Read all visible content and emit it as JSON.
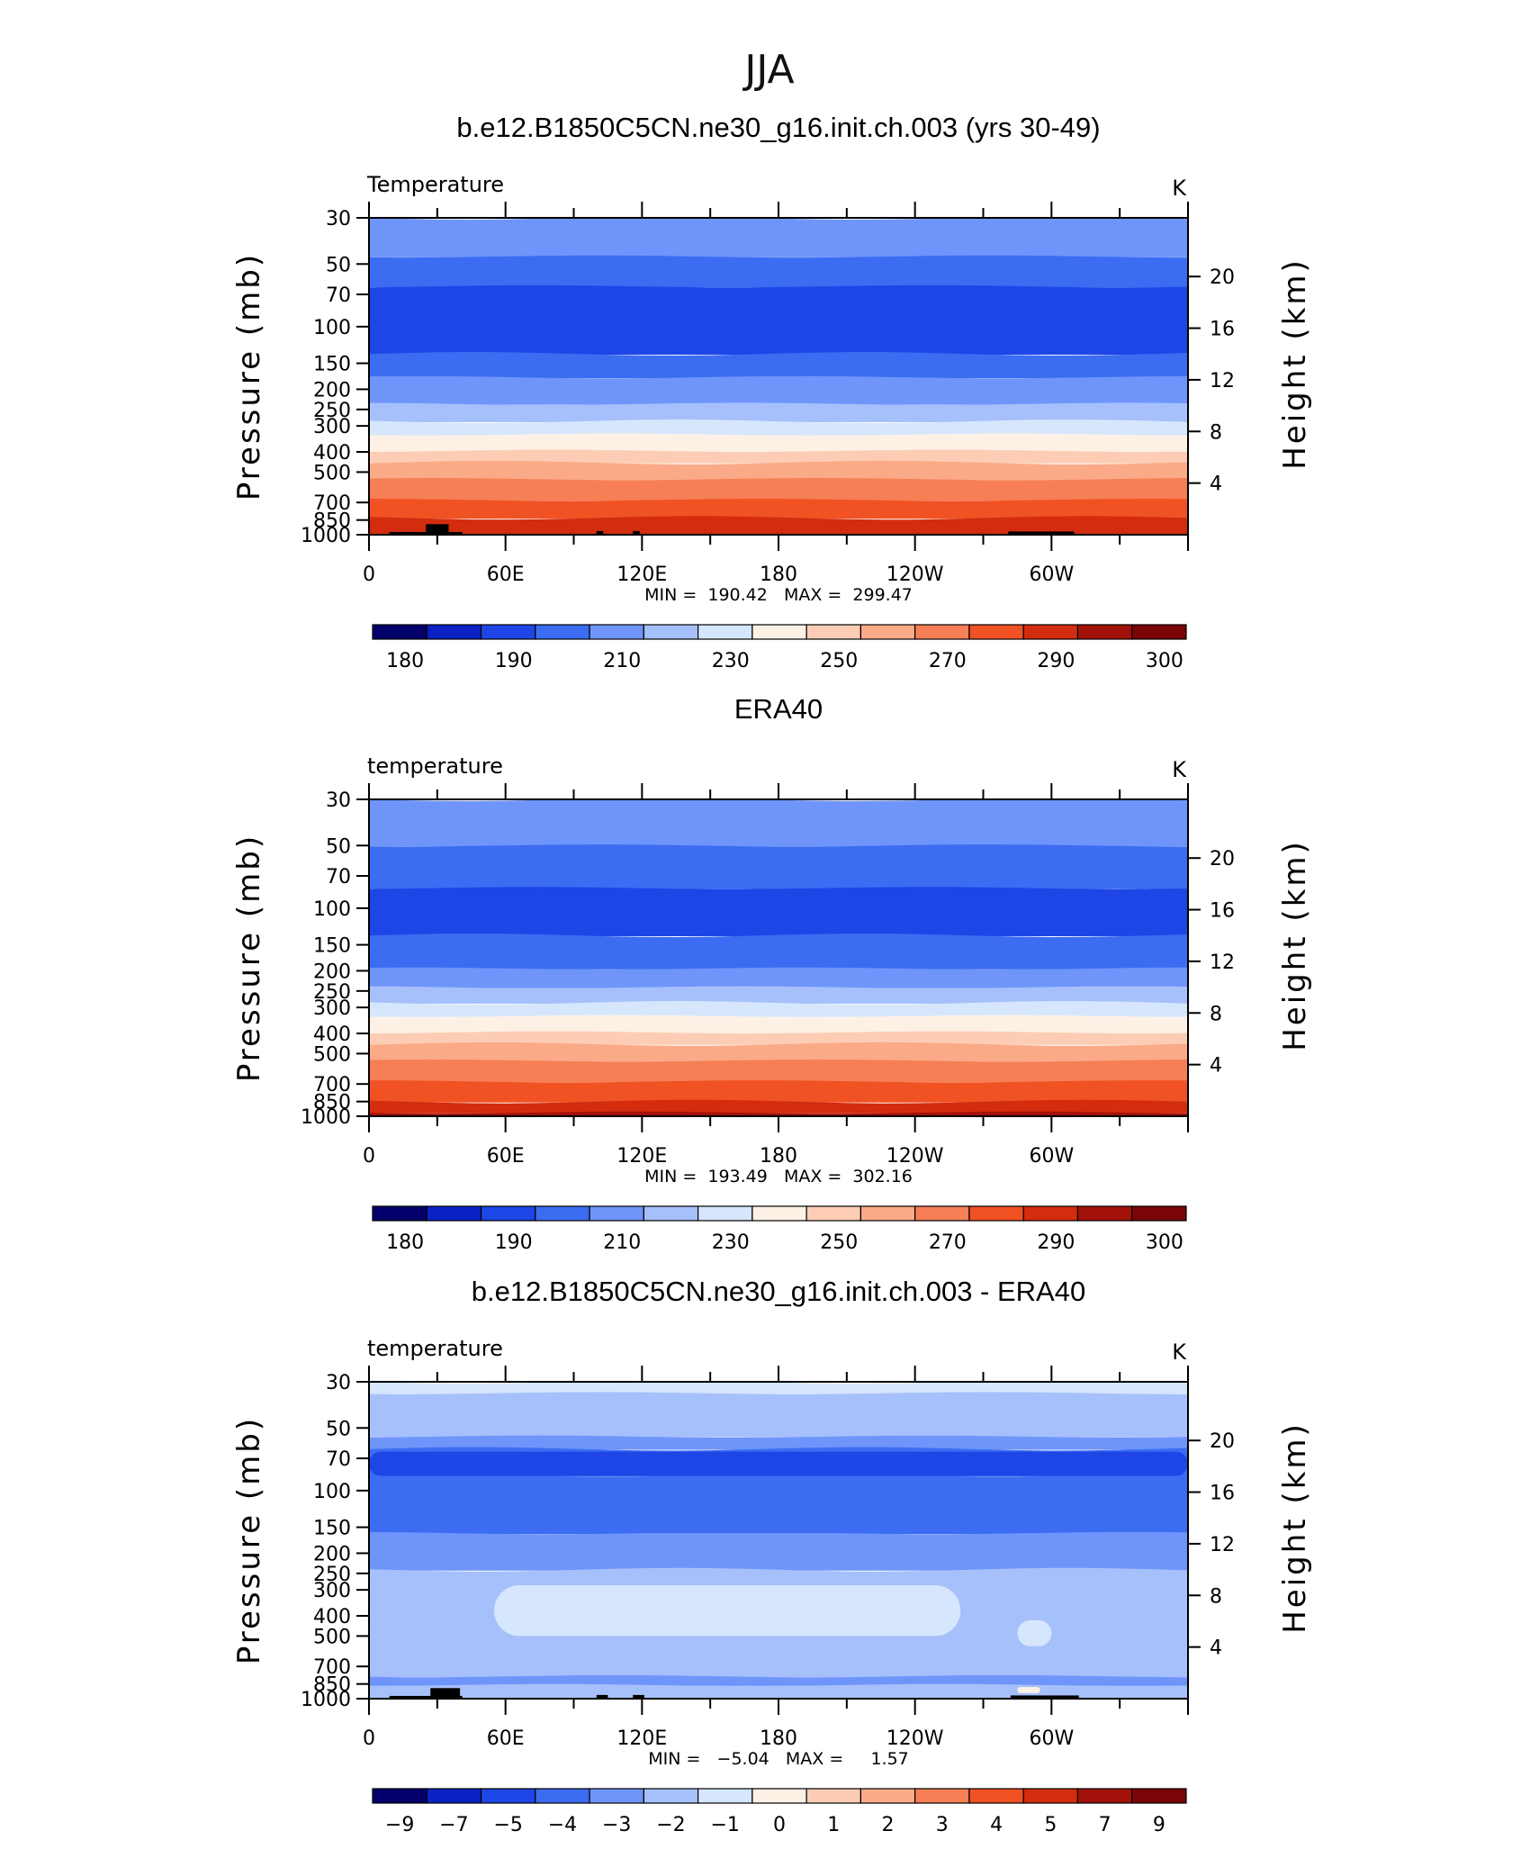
{
  "figure": {
    "title": "JJA"
  },
  "chart_data": [
    {
      "type": "heatmap",
      "panel_title": "b.e12.B1850C5CN.ne30_g16.init.ch.003 (yrs 30-49)",
      "left_string": "Temperature",
      "units": "K",
      "ylabel": "Pressure (mb)",
      "ylabel_right": "Height (km)",
      "x_ticklabels": [
        "0",
        "60E",
        "120E",
        "180",
        "120W",
        "60W"
      ],
      "y_ticklabels": [
        "30",
        "50",
        "70",
        "100",
        "150",
        "200",
        "250",
        "300",
        "400",
        "500",
        "700",
        "850",
        "1000"
      ],
      "y_right_ticklabels": [
        "20",
        "16",
        "12",
        "8",
        "4"
      ],
      "min": "190.42",
      "max": "299.47",
      "minmax_text": "MIN =  190.42   MAX =  299.47",
      "colorbar_labels": [
        "180",
        "190",
        "210",
        "230",
        "250",
        "270",
        "290",
        "300"
      ],
      "colorbar_colors": [
        "#03006b",
        "#0a22c4",
        "#1e46e6",
        "#3b6cf2",
        "#6f95fa",
        "#a6c0fb",
        "#d6e6fd",
        "#fdf1e6",
        "#fccdb4",
        "#fbaa88",
        "#f67f56",
        "#f05223",
        "#d32c0f",
        "#a3120a",
        "#7a0406"
      ],
      "bands": [
        {
          "pressure_top": 30,
          "pressure_bottom": 46,
          "color": "#6f95fa"
        },
        {
          "pressure_top": 46,
          "pressure_bottom": 64,
          "color": "#3b6cf2"
        },
        {
          "pressure_top": 64,
          "pressure_bottom": 135,
          "color": "#1e46e6"
        },
        {
          "pressure_top": 135,
          "pressure_bottom": 175,
          "color": "#3b6cf2"
        },
        {
          "pressure_top": 175,
          "pressure_bottom": 235,
          "color": "#6f95fa"
        },
        {
          "pressure_top": 235,
          "pressure_bottom": 285,
          "color": "#a6c0fb"
        },
        {
          "pressure_top": 285,
          "pressure_bottom": 330,
          "color": "#d6e6fd"
        },
        {
          "pressure_top": 330,
          "pressure_bottom": 395,
          "color": "#fdf1e6"
        },
        {
          "pressure_top": 395,
          "pressure_bottom": 450,
          "color": "#fccdb4"
        },
        {
          "pressure_top": 450,
          "pressure_bottom": 540,
          "color": "#fbaa88"
        },
        {
          "pressure_top": 540,
          "pressure_bottom": 680,
          "color": "#f67f56"
        },
        {
          "pressure_top": 680,
          "pressure_bottom": 830,
          "color": "#f05223"
        },
        {
          "pressure_top": 830,
          "pressure_bottom": 1000,
          "color": "#d32c0f"
        }
      ],
      "topography": [
        {
          "lon_from": 9,
          "lon_to": 41,
          "pressure_top": 970
        },
        {
          "lon_from": 25,
          "lon_to": 35,
          "pressure_top": 890
        },
        {
          "lon_from": 100,
          "lon_to": 103,
          "pressure_top": 960
        },
        {
          "lon_from": 116,
          "lon_to": 119,
          "pressure_top": 960
        },
        {
          "lon_from": 281,
          "lon_to": 310,
          "pressure_top": 965
        }
      ]
    },
    {
      "type": "heatmap",
      "panel_title": "ERA40",
      "left_string": "temperature",
      "units": "K",
      "ylabel": "Pressure (mb)",
      "ylabel_right": "Height (km)",
      "x_ticklabels": [
        "0",
        "60E",
        "120E",
        "180",
        "120W",
        "60W"
      ],
      "y_ticklabels": [
        "30",
        "50",
        "70",
        "100",
        "150",
        "200",
        "250",
        "300",
        "400",
        "500",
        "700",
        "850",
        "1000"
      ],
      "y_right_ticklabels": [
        "20",
        "16",
        "12",
        "8",
        "4"
      ],
      "min": "193.49",
      "max": "302.16",
      "minmax_text": "MIN =  193.49   MAX =  302.16",
      "colorbar_labels": [
        "180",
        "190",
        "210",
        "230",
        "250",
        "270",
        "290",
        "300"
      ],
      "colorbar_colors": [
        "#03006b",
        "#0a22c4",
        "#1e46e6",
        "#3b6cf2",
        "#6f95fa",
        "#a6c0fb",
        "#d6e6fd",
        "#fdf1e6",
        "#fccdb4",
        "#fbaa88",
        "#f67f56",
        "#f05223",
        "#d32c0f",
        "#a3120a",
        "#7a0406"
      ],
      "bands": [
        {
          "pressure_top": 30,
          "pressure_bottom": 50,
          "color": "#6f95fa"
        },
        {
          "pressure_top": 50,
          "pressure_bottom": 80,
          "color": "#3b6cf2"
        },
        {
          "pressure_top": 80,
          "pressure_bottom": 135,
          "color": "#1e46e6"
        },
        {
          "pressure_top": 135,
          "pressure_bottom": 195,
          "color": "#3b6cf2"
        },
        {
          "pressure_top": 195,
          "pressure_bottom": 240,
          "color": "#6f95fa"
        },
        {
          "pressure_top": 240,
          "pressure_bottom": 285,
          "color": "#a6c0fb"
        },
        {
          "pressure_top": 285,
          "pressure_bottom": 330,
          "color": "#d6e6fd"
        },
        {
          "pressure_top": 330,
          "pressure_bottom": 395,
          "color": "#fdf1e6"
        },
        {
          "pressure_top": 395,
          "pressure_bottom": 450,
          "color": "#fccdb4"
        },
        {
          "pressure_top": 450,
          "pressure_bottom": 540,
          "color": "#fbaa88"
        },
        {
          "pressure_top": 540,
          "pressure_bottom": 680,
          "color": "#f67f56"
        },
        {
          "pressure_top": 680,
          "pressure_bottom": 850,
          "color": "#f05223"
        },
        {
          "pressure_top": 850,
          "pressure_bottom": 960,
          "color": "#d32c0f"
        },
        {
          "pressure_top": 960,
          "pressure_bottom": 1000,
          "color": "#a3120a"
        }
      ],
      "topography": []
    },
    {
      "type": "heatmap",
      "panel_title": "b.e12.B1850C5CN.ne30_g16.init.ch.003 - ERA40",
      "left_string": "temperature",
      "units": "K",
      "ylabel": "Pressure (mb)",
      "ylabel_right": "Height (km)",
      "x_ticklabels": [
        "0",
        "60E",
        "120E",
        "180",
        "120W",
        "60W"
      ],
      "y_ticklabels": [
        "30",
        "50",
        "70",
        "100",
        "150",
        "200",
        "250",
        "300",
        "400",
        "500",
        "700",
        "850",
        "1000"
      ],
      "y_right_ticklabels": [
        "20",
        "16",
        "12",
        "8",
        "4"
      ],
      "min": "-5.04",
      "max": "1.57",
      "minmax_text": "MIN =   −5.04   MAX =     1.57",
      "colorbar_labels": [
        "−9",
        "−7",
        "−5",
        "−4",
        "−3",
        "−2",
        "−1",
        "0",
        "1",
        "2",
        "3",
        "4",
        "5",
        "7",
        "9"
      ],
      "colorbar_colors": [
        "#03006b",
        "#0a22c4",
        "#1e46e6",
        "#3b6cf2",
        "#6f95fa",
        "#a6c0fb",
        "#d6e6fd",
        "#fdf1e6",
        "#fccdb4",
        "#fbaa88",
        "#f67f56",
        "#f05223",
        "#d32c0f",
        "#a3120a",
        "#7a0406"
      ],
      "bands": [
        {
          "pressure_top": 30,
          "pressure_bottom": 34,
          "color": "#d6e6fd"
        },
        {
          "pressure_top": 34,
          "pressure_bottom": 55,
          "color": "#a6c0fb"
        },
        {
          "pressure_top": 55,
          "pressure_bottom": 63,
          "color": "#6f95fa"
        },
        {
          "pressure_top": 63,
          "pressure_bottom": 85,
          "color": "#3b6cf2"
        },
        {
          "pressure_top": 85,
          "pressure_bottom": 160,
          "color": "#3b6cf2"
        },
        {
          "pressure_top": 160,
          "pressure_bottom": 240,
          "color": "#6f95fa"
        },
        {
          "pressure_top": 240,
          "pressure_bottom": 780,
          "color": "#a6c0fb"
        },
        {
          "pressure_top": 780,
          "pressure_bottom": 860,
          "color": "#6f95fa"
        },
        {
          "pressure_top": 860,
          "pressure_bottom": 1000,
          "color": "#a6c0fb"
        }
      ],
      "patches": [
        {
          "lon_from": 0,
          "lon_to": 360,
          "pressure_top": 65,
          "pressure_bottom": 85,
          "color": "#1e46e6"
        },
        {
          "lon_from": 50,
          "lon_to": 283,
          "pressure_top": 100,
          "pressure_bottom": 160,
          "color": "#3b6cf2"
        },
        {
          "lon_from": 55,
          "lon_to": 260,
          "pressure_top": 285,
          "pressure_bottom": 500,
          "color": "#d6e6fd"
        },
        {
          "lon_from": 285,
          "lon_to": 300,
          "pressure_top": 420,
          "pressure_bottom": 560,
          "color": "#d6e6fd"
        },
        {
          "lon_from": 285,
          "lon_to": 295,
          "pressure_top": 880,
          "pressure_bottom": 940,
          "color": "#fdf1e6"
        }
      ],
      "topography": [
        {
          "lon_from": 9,
          "lon_to": 41,
          "pressure_top": 970
        },
        {
          "lon_from": 27,
          "lon_to": 40,
          "pressure_top": 890
        },
        {
          "lon_from": 100,
          "lon_to": 105,
          "pressure_top": 960
        },
        {
          "lon_from": 116,
          "lon_to": 121,
          "pressure_top": 960
        },
        {
          "lon_from": 282,
          "lon_to": 312,
          "pressure_top": 965
        }
      ]
    }
  ]
}
